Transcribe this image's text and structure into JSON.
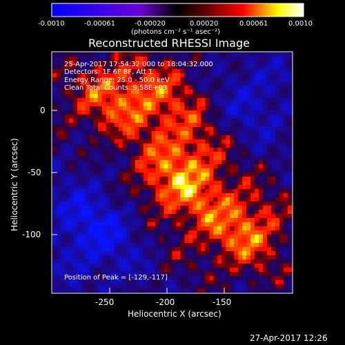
{
  "plot": {
    "title": "Reconstructed RHESSI Image",
    "xlabel": "Heliocentric X (arcsec)",
    "ylabel": "Heliocentric Y (arcsec)",
    "xticks": [
      "-250",
      "-200",
      "-150"
    ],
    "yticks": [
      "0",
      "-50",
      "-100"
    ],
    "timestamp": "27-Apr-2017 12:26"
  },
  "colorbar": {
    "label": "(photons cm⁻² s⁻¹ asec⁻²)",
    "ticks": [
      "-0.0010",
      "-0.00061",
      "-0.00020",
      "0.00020",
      "0.00061",
      "0.0010"
    ],
    "colors": [
      "#0000ff",
      "#ffffff",
      "#ff0000",
      "#ffff00",
      "#ffffff"
    ]
  },
  "overlay": {
    "line1": "25-Apr-2017 17:54:32.000 to 18:04:32.000",
    "line2": "Detectors: 1F 6F 8F, Att 1",
    "line3": "Energy Range: 25.0 - 50.0 keV",
    "line4": "Clean    Total Counts: 9.58E+03",
    "peak": "Position of Peak = [-129,-117]"
  }
}
